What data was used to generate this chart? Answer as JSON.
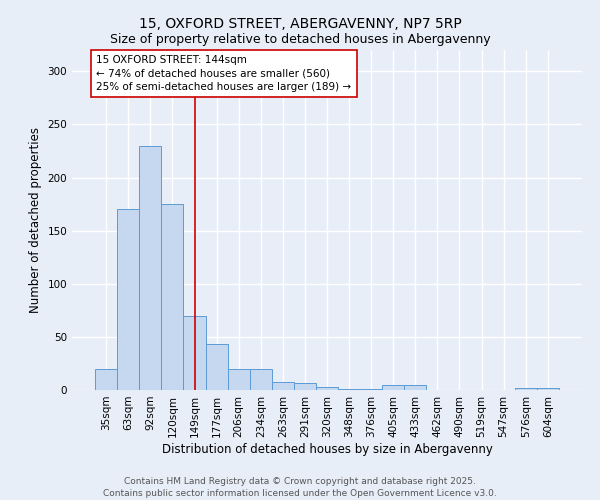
{
  "title_line1": "15, OXFORD STREET, ABERGAVENNY, NP7 5RP",
  "title_line2": "Size of property relative to detached houses in Abergavenny",
  "xlabel": "Distribution of detached houses by size in Abergavenny",
  "ylabel": "Number of detached properties",
  "categories": [
    "35sqm",
    "63sqm",
    "92sqm",
    "120sqm",
    "149sqm",
    "177sqm",
    "206sqm",
    "234sqm",
    "263sqm",
    "291sqm",
    "320sqm",
    "348sqm",
    "376sqm",
    "405sqm",
    "433sqm",
    "462sqm",
    "490sqm",
    "519sqm",
    "547sqm",
    "576sqm",
    "604sqm"
  ],
  "values": [
    20,
    170,
    230,
    175,
    70,
    43,
    20,
    20,
    8,
    7,
    3,
    1,
    1,
    5,
    5,
    0,
    0,
    0,
    0,
    2,
    2
  ],
  "bar_color": "#c5d8f0",
  "bar_edge_color": "#5b9bd5",
  "vline_x_index": 4,
  "vline_color": "#cc0000",
  "annotation_text": "15 OXFORD STREET: 144sqm\n← 74% of detached houses are smaller (560)\n25% of semi-detached houses are larger (189) →",
  "annotation_box_color": "#ffffff",
  "annotation_box_edge": "#cc0000",
  "ylim": [
    0,
    320
  ],
  "yticks": [
    0,
    50,
    100,
    150,
    200,
    250,
    300
  ],
  "footer_line1": "Contains HM Land Registry data © Crown copyright and database right 2025.",
  "footer_line2": "Contains public sector information licensed under the Open Government Licence v3.0.",
  "bg_color": "#e8eef8",
  "plot_bg_color": "#e8eef8",
  "grid_color": "#ffffff",
  "title_fontsize": 10,
  "subtitle_fontsize": 9,
  "axis_label_fontsize": 8.5,
  "tick_fontsize": 7.5,
  "annotation_fontsize": 7.5,
  "footer_fontsize": 6.5
}
